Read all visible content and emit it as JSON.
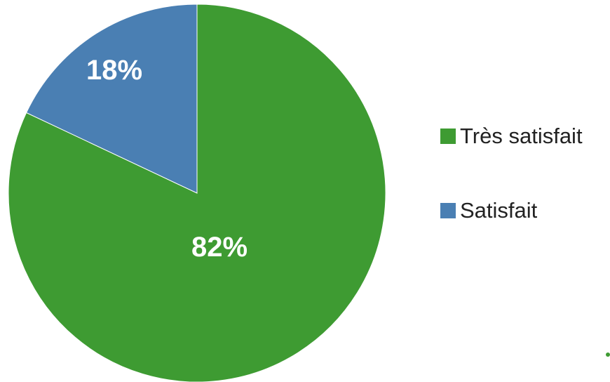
{
  "chart_data": {
    "type": "pie",
    "title": "",
    "slices": [
      {
        "label": "Très satisfait",
        "value": 82,
        "display": "82%",
        "color": "#3e9b32"
      },
      {
        "label": "Satisfait",
        "value": 18,
        "display": "18%",
        "color": "#4a7fb3"
      }
    ],
    "start_angle_deg": 0,
    "direction": "clockwise",
    "legend_position": "right",
    "data_labels": true
  }
}
